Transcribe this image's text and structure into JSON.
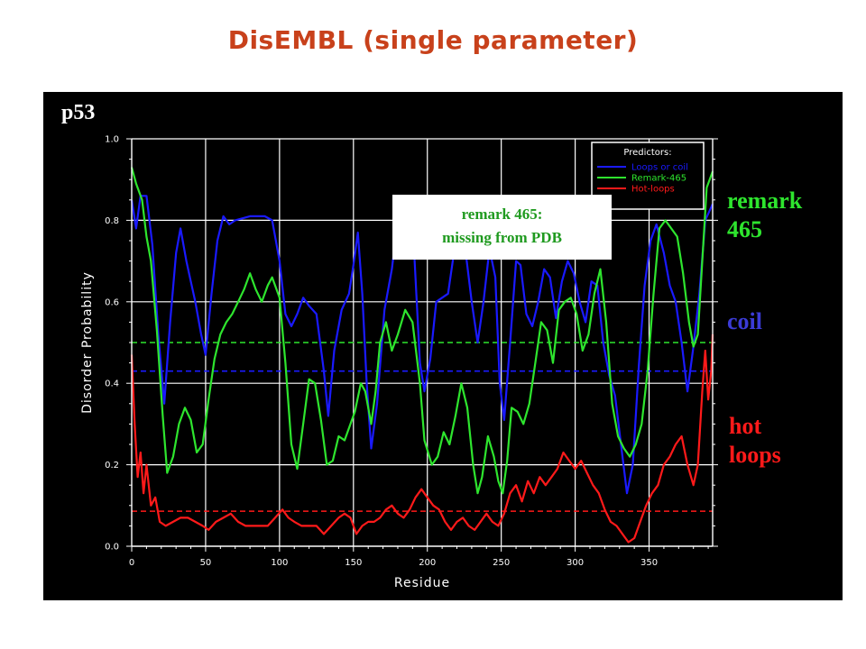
{
  "slide": {
    "title": "DisEMBL (single parameter)",
    "protein": "p53",
    "callout_line1": "remark 465:",
    "callout_line2": "missing from PDB"
  },
  "side_labels": {
    "remark_line1": "remark",
    "remark_line2": "465",
    "coil": "coil",
    "hot_line1": "hot",
    "hot_line2": "loops"
  },
  "colors": {
    "loops_coil": "#1a1aff",
    "remark_465": "#2ee52e",
    "hot_loops": "#ff1a1a",
    "slide_title": "#c8411b",
    "coil_label": "#3b3bd6"
  },
  "chart_data": {
    "type": "line",
    "xlabel": "Residue",
    "ylabel": "Disorder Probability",
    "xlim": [
      0,
      393
    ],
    "ylim": [
      0,
      1.0
    ],
    "xticks": [
      0,
      50,
      100,
      150,
      200,
      250,
      300,
      350
    ],
    "yticks": [
      0.0,
      0.2,
      0.4,
      0.6,
      0.8,
      1.0
    ],
    "grid": true,
    "legend": {
      "title": "Predictors:",
      "placement": "top-right",
      "entries": [
        "Loops or coil",
        "Remark-465",
        "Hot-loops"
      ]
    },
    "series": [
      {
        "name": "Loops or coil",
        "color": "#1a1aff",
        "threshold": 0.43,
        "points": [
          [
            0,
            0.85
          ],
          [
            3,
            0.78
          ],
          [
            6,
            0.86
          ],
          [
            10,
            0.86
          ],
          [
            14,
            0.74
          ],
          [
            18,
            0.52
          ],
          [
            22,
            0.35
          ],
          [
            26,
            0.55
          ],
          [
            30,
            0.72
          ],
          [
            33,
            0.78
          ],
          [
            37,
            0.7
          ],
          [
            40,
            0.65
          ],
          [
            43,
            0.6
          ],
          [
            47,
            0.52
          ],
          [
            50,
            0.47
          ],
          [
            54,
            0.62
          ],
          [
            58,
            0.75
          ],
          [
            62,
            0.81
          ],
          [
            66,
            0.79
          ],
          [
            70,
            0.8
          ],
          [
            80,
            0.81
          ],
          [
            90,
            0.81
          ],
          [
            95,
            0.8
          ],
          [
            100,
            0.7
          ],
          [
            104,
            0.57
          ],
          [
            108,
            0.54
          ],
          [
            112,
            0.57
          ],
          [
            116,
            0.61
          ],
          [
            120,
            0.59
          ],
          [
            125,
            0.57
          ],
          [
            130,
            0.43
          ],
          [
            133,
            0.32
          ],
          [
            137,
            0.48
          ],
          [
            142,
            0.58
          ],
          [
            147,
            0.62
          ],
          [
            150,
            0.69
          ],
          [
            153,
            0.77
          ],
          [
            156,
            0.62
          ],
          [
            159,
            0.4
          ],
          [
            162,
            0.24
          ],
          [
            166,
            0.35
          ],
          [
            171,
            0.58
          ],
          [
            176,
            0.68
          ],
          [
            180,
            0.8
          ],
          [
            185,
            0.84
          ],
          [
            190,
            0.8
          ],
          [
            195,
            0.45
          ],
          [
            198,
            0.38
          ],
          [
            202,
            0.46
          ],
          [
            206,
            0.6
          ],
          [
            210,
            0.61
          ],
          [
            214,
            0.62
          ],
          [
            218,
            0.72
          ],
          [
            222,
            0.73
          ],
          [
            226,
            0.72
          ],
          [
            230,
            0.6
          ],
          [
            234,
            0.5
          ],
          [
            238,
            0.6
          ],
          [
            242,
            0.73
          ],
          [
            246,
            0.66
          ],
          [
            249,
            0.4
          ],
          [
            252,
            0.31
          ],
          [
            256,
            0.5
          ],
          [
            260,
            0.7
          ],
          [
            263,
            0.69
          ],
          [
            267,
            0.57
          ],
          [
            271,
            0.54
          ],
          [
            275,
            0.6
          ],
          [
            279,
            0.68
          ],
          [
            283,
            0.66
          ],
          [
            287,
            0.56
          ],
          [
            291,
            0.65
          ],
          [
            295,
            0.7
          ],
          [
            299,
            0.67
          ],
          [
            303,
            0.6
          ],
          [
            307,
            0.55
          ],
          [
            311,
            0.65
          ],
          [
            315,
            0.64
          ],
          [
            319,
            0.5
          ],
          [
            323,
            0.42
          ],
          [
            327,
            0.37
          ],
          [
            331,
            0.25
          ],
          [
            335,
            0.13
          ],
          [
            339,
            0.2
          ],
          [
            343,
            0.44
          ],
          [
            347,
            0.64
          ],
          [
            351,
            0.75
          ],
          [
            355,
            0.79
          ],
          [
            360,
            0.72
          ],
          [
            364,
            0.64
          ],
          [
            368,
            0.6
          ],
          [
            372,
            0.5
          ],
          [
            376,
            0.38
          ],
          [
            380,
            0.49
          ],
          [
            384,
            0.62
          ],
          [
            388,
            0.8
          ],
          [
            393,
            0.84
          ]
        ]
      },
      {
        "name": "Remark-465",
        "color": "#2ee52e",
        "threshold": 0.5,
        "points": [
          [
            0,
            0.93
          ],
          [
            3,
            0.89
          ],
          [
            7,
            0.85
          ],
          [
            10,
            0.76
          ],
          [
            13,
            0.7
          ],
          [
            17,
            0.53
          ],
          [
            21,
            0.32
          ],
          [
            24,
            0.18
          ],
          [
            28,
            0.22
          ],
          [
            32,
            0.3
          ],
          [
            36,
            0.34
          ],
          [
            40,
            0.31
          ],
          [
            44,
            0.23
          ],
          [
            48,
            0.25
          ],
          [
            52,
            0.36
          ],
          [
            56,
            0.46
          ],
          [
            60,
            0.52
          ],
          [
            64,
            0.55
          ],
          [
            68,
            0.57
          ],
          [
            72,
            0.6
          ],
          [
            76,
            0.63
          ],
          [
            80,
            0.67
          ],
          [
            84,
            0.63
          ],
          [
            88,
            0.6
          ],
          [
            92,
            0.64
          ],
          [
            95,
            0.66
          ],
          [
            100,
            0.61
          ],
          [
            104,
            0.45
          ],
          [
            108,
            0.25
          ],
          [
            112,
            0.19
          ],
          [
            116,
            0.3
          ],
          [
            120,
            0.41
          ],
          [
            124,
            0.4
          ],
          [
            128,
            0.31
          ],
          [
            132,
            0.2
          ],
          [
            136,
            0.21
          ],
          [
            140,
            0.27
          ],
          [
            144,
            0.26
          ],
          [
            148,
            0.3
          ],
          [
            151,
            0.33
          ],
          [
            155,
            0.4
          ],
          [
            158,
            0.38
          ],
          [
            162,
            0.3
          ],
          [
            165,
            0.38
          ],
          [
            168,
            0.5
          ],
          [
            172,
            0.55
          ],
          [
            176,
            0.48
          ],
          [
            180,
            0.52
          ],
          [
            185,
            0.58
          ],
          [
            190,
            0.55
          ],
          [
            195,
            0.4
          ],
          [
            198,
            0.26
          ],
          [
            203,
            0.2
          ],
          [
            207,
            0.22
          ],
          [
            211,
            0.28
          ],
          [
            215,
            0.25
          ],
          [
            219,
            0.32
          ],
          [
            223,
            0.4
          ],
          [
            227,
            0.34
          ],
          [
            231,
            0.2
          ],
          [
            234,
            0.13
          ],
          [
            237,
            0.17
          ],
          [
            241,
            0.27
          ],
          [
            245,
            0.22
          ],
          [
            248,
            0.16
          ],
          [
            251,
            0.13
          ],
          [
            254,
            0.21
          ],
          [
            257,
            0.34
          ],
          [
            261,
            0.33
          ],
          [
            265,
            0.3
          ],
          [
            269,
            0.35
          ],
          [
            273,
            0.45
          ],
          [
            277,
            0.55
          ],
          [
            281,
            0.53
          ],
          [
            285,
            0.45
          ],
          [
            289,
            0.58
          ],
          [
            293,
            0.6
          ],
          [
            297,
            0.61
          ],
          [
            301,
            0.57
          ],
          [
            305,
            0.48
          ],
          [
            309,
            0.52
          ],
          [
            313,
            0.62
          ],
          [
            317,
            0.68
          ],
          [
            321,
            0.55
          ],
          [
            325,
            0.35
          ],
          [
            329,
            0.27
          ],
          [
            333,
            0.24
          ],
          [
            337,
            0.22
          ],
          [
            341,
            0.25
          ],
          [
            345,
            0.3
          ],
          [
            349,
            0.43
          ],
          [
            353,
            0.62
          ],
          [
            357,
            0.78
          ],
          [
            361,
            0.8
          ],
          [
            365,
            0.78
          ],
          [
            369,
            0.76
          ],
          [
            373,
            0.67
          ],
          [
            377,
            0.55
          ],
          [
            380,
            0.49
          ],
          [
            383,
            0.52
          ],
          [
            386,
            0.7
          ],
          [
            389,
            0.88
          ],
          [
            393,
            0.92
          ]
        ]
      },
      {
        "name": "Hot-loops",
        "color": "#ff1a1a",
        "threshold": 0.086,
        "points": [
          [
            0,
            0.47
          ],
          [
            2,
            0.3
          ],
          [
            4,
            0.17
          ],
          [
            6,
            0.23
          ],
          [
            8,
            0.13
          ],
          [
            10,
            0.2
          ],
          [
            13,
            0.1
          ],
          [
            16,
            0.12
          ],
          [
            19,
            0.06
          ],
          [
            23,
            0.05
          ],
          [
            28,
            0.06
          ],
          [
            33,
            0.07
          ],
          [
            38,
            0.07
          ],
          [
            43,
            0.06
          ],
          [
            48,
            0.05
          ],
          [
            52,
            0.04
          ],
          [
            57,
            0.06
          ],
          [
            62,
            0.07
          ],
          [
            67,
            0.08
          ],
          [
            72,
            0.06
          ],
          [
            77,
            0.05
          ],
          [
            82,
            0.05
          ],
          [
            87,
            0.05
          ],
          [
            92,
            0.05
          ],
          [
            97,
            0.07
          ],
          [
            102,
            0.09
          ],
          [
            106,
            0.07
          ],
          [
            110,
            0.06
          ],
          [
            115,
            0.05
          ],
          [
            120,
            0.05
          ],
          [
            125,
            0.05
          ],
          [
            130,
            0.03
          ],
          [
            135,
            0.05
          ],
          [
            140,
            0.07
          ],
          [
            144,
            0.08
          ],
          [
            148,
            0.07
          ],
          [
            152,
            0.03
          ],
          [
            156,
            0.05
          ],
          [
            160,
            0.06
          ],
          [
            164,
            0.06
          ],
          [
            168,
            0.07
          ],
          [
            172,
            0.09
          ],
          [
            176,
            0.1
          ],
          [
            180,
            0.08
          ],
          [
            184,
            0.07
          ],
          [
            188,
            0.09
          ],
          [
            192,
            0.12
          ],
          [
            196,
            0.14
          ],
          [
            200,
            0.12
          ],
          [
            204,
            0.1
          ],
          [
            208,
            0.09
          ],
          [
            212,
            0.06
          ],
          [
            216,
            0.04
          ],
          [
            220,
            0.06
          ],
          [
            224,
            0.07
          ],
          [
            228,
            0.05
          ],
          [
            232,
            0.04
          ],
          [
            236,
            0.06
          ],
          [
            240,
            0.08
          ],
          [
            244,
            0.06
          ],
          [
            248,
            0.05
          ],
          [
            252,
            0.08
          ],
          [
            256,
            0.13
          ],
          [
            260,
            0.15
          ],
          [
            264,
            0.11
          ],
          [
            268,
            0.16
          ],
          [
            272,
            0.13
          ],
          [
            276,
            0.17
          ],
          [
            280,
            0.15
          ],
          [
            284,
            0.17
          ],
          [
            288,
            0.19
          ],
          [
            292,
            0.23
          ],
          [
            296,
            0.21
          ],
          [
            300,
            0.19
          ],
          [
            304,
            0.21
          ],
          [
            308,
            0.18
          ],
          [
            312,
            0.15
          ],
          [
            316,
            0.13
          ],
          [
            320,
            0.09
          ],
          [
            324,
            0.06
          ],
          [
            328,
            0.05
          ],
          [
            332,
            0.03
          ],
          [
            336,
            0.01
          ],
          [
            340,
            0.02
          ],
          [
            344,
            0.06
          ],
          [
            348,
            0.1
          ],
          [
            352,
            0.13
          ],
          [
            356,
            0.15
          ],
          [
            360,
            0.2
          ],
          [
            364,
            0.22
          ],
          [
            368,
            0.25
          ],
          [
            372,
            0.27
          ],
          [
            376,
            0.2
          ],
          [
            380,
            0.15
          ],
          [
            383,
            0.2
          ],
          [
            386,
            0.38
          ],
          [
            388,
            0.48
          ],
          [
            390,
            0.36
          ],
          [
            392,
            0.43
          ],
          [
            393,
            0.52
          ]
        ]
      }
    ]
  }
}
